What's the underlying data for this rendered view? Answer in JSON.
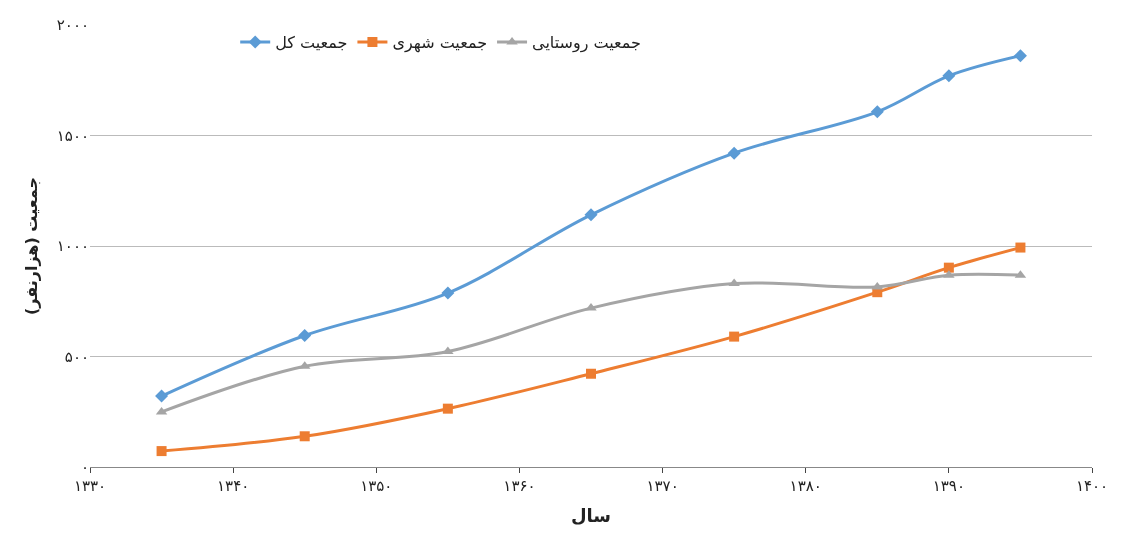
{
  "chart_data": {
    "type": "line",
    "xlabel": "سال",
    "ylabel": "جمعیت (هزارنفر)",
    "x": [
      1335,
      1345,
      1355,
      1365,
      1375,
      1385,
      1390,
      1395
    ],
    "series": [
      {
        "name": "جمعیت کل",
        "color": "#5b9bd5",
        "marker": "diamond",
        "values": [
          321,
          595,
          787,
          1141,
          1420,
          1607,
          1770,
          1861
        ]
      },
      {
        "name": "جمعیت شهری",
        "color": "#ed7d31",
        "marker": "square",
        "values": [
          72,
          139,
          264,
          422,
          590,
          791,
          902,
          993
        ]
      },
      {
        "name": "جمعیت روستایی",
        "color": "#a5a5a5",
        "marker": "triangle",
        "values": [
          249,
          456,
          523,
          719,
          830,
          815,
          868,
          868
        ]
      }
    ],
    "xlim": [
      1330,
      1400
    ],
    "xticks": [
      {
        "value": 1330,
        "label": "۱۳۳۰"
      },
      {
        "value": 1340,
        "label": "۱۳۴۰"
      },
      {
        "value": 1350,
        "label": "۱۳۵۰"
      },
      {
        "value": 1360,
        "label": "۱۳۶۰"
      },
      {
        "value": 1370,
        "label": "۱۳۷۰"
      },
      {
        "value": 1380,
        "label": "۱۳۸۰"
      },
      {
        "value": 1390,
        "label": "۱۳۹۰"
      },
      {
        "value": 1400,
        "label": "۱۴۰۰"
      }
    ],
    "ylim": [
      0,
      2000
    ],
    "yticks": [
      {
        "value": 0,
        "label": "۰"
      },
      {
        "value": 500,
        "label": "۵۰۰"
      },
      {
        "value": 1000,
        "label": "۱۰۰۰"
      },
      {
        "value": 1500,
        "label": "۱۵۰۰"
      },
      {
        "value": 2000,
        "label": "۲۰۰۰"
      }
    ],
    "grid": "y",
    "legend": "top"
  }
}
